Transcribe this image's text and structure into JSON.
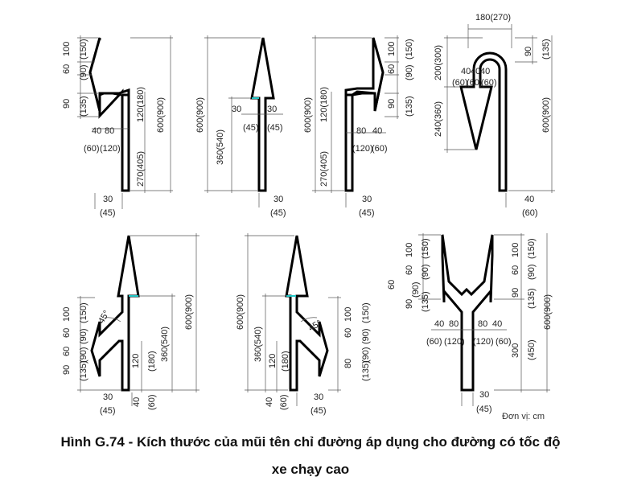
{
  "figure": {
    "caption_line1": "Hình G.74 - Kích thước của mũi tên chỉ đường áp dụng cho đường có tốc độ",
    "caption_line2": "xe chạy cao",
    "unit_note": "Đơn vị: cm"
  },
  "labels": {
    "d30": "30",
    "d45": "(45)",
    "d40": "40",
    "d60": "(60)",
    "d80": "80",
    "d120": "(120)",
    "d100": "100",
    "d150": "(150)",
    "d90": "(90)",
    "d90b": "90",
    "d135": "(135)",
    "d600": "600(900)",
    "d270": "270(405)",
    "d360": "360(540)",
    "d120b": "120(180)",
    "d180_270": "180(270)",
    "d200": "200(300)",
    "d240": "240(360)",
    "d300": "300",
    "d450": "(450)",
    "d120s": "120",
    "d180s": "(180)",
    "angle45": "45°",
    "d60s": "60"
  }
}
